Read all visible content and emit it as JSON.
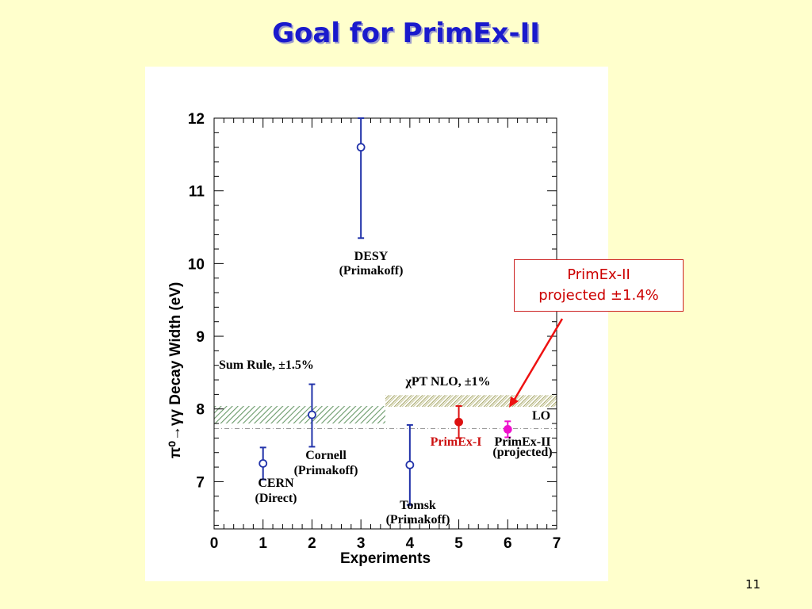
{
  "slide": {
    "title": "Goal for PrimEx-II",
    "page_number": "11"
  },
  "callout": {
    "line1": "PrimEx-II",
    "line2": "projected ±1.4%",
    "color": "#cc0000"
  },
  "chart_data": {
    "type": "scatter",
    "xlabel": "Experiments",
    "ylabel": "π⁰→γγ  Decay Width (eV)",
    "xlim": [
      0,
      7
    ],
    "ylim": [
      6.35,
      12
    ],
    "x_ticks": [
      "0",
      "1",
      "2",
      "3",
      "4",
      "5",
      "6",
      "7"
    ],
    "y_ticks": [
      "7",
      "8",
      "9",
      "10",
      "11",
      "12"
    ],
    "grid": false,
    "points": [
      {
        "x": 1,
        "y": 7.25,
        "err_low": 0.22,
        "err_high": 0.22,
        "marker": "open-circle",
        "color": "#2233aa",
        "label": "CERN",
        "sublabel": "(Direct)"
      },
      {
        "x": 2,
        "y": 7.92,
        "err_low": 0.44,
        "err_high": 0.42,
        "marker": "open-circle",
        "color": "#2233aa",
        "label": "Cornell",
        "sublabel": "(Primakoff)"
      },
      {
        "x": 3,
        "y": 11.6,
        "err_low": 1.25,
        "err_high": 0.4,
        "marker": "open-circle",
        "color": "#2233aa",
        "label": "DESY",
        "sublabel": "(Primakoff)"
      },
      {
        "x": 4,
        "y": 7.23,
        "err_low": 0.55,
        "err_high": 0.55,
        "marker": "open-circle",
        "color": "#2233aa",
        "label": "Tomsk",
        "sublabel": "(Primakoff)"
      },
      {
        "x": 5,
        "y": 7.82,
        "err_low": 0.22,
        "err_high": 0.22,
        "marker": "filled-circle",
        "color": "#dd1111",
        "label": "PrimEx-I",
        "sublabel": ""
      },
      {
        "x": 6,
        "y": 7.72,
        "err_low": 0.11,
        "err_high": 0.11,
        "marker": "filled-circle",
        "color": "#ee11cc",
        "label": "PrimEx-II",
        "sublabel": "(projected)"
      }
    ],
    "bands": [
      {
        "label": "Sum Rule, ±1.5%",
        "x0": 0,
        "x1": 3.5,
        "y0": 7.8,
        "y1": 8.04,
        "color": "#6a9a6a"
      },
      {
        "label": "χPT NLO, ±1%",
        "x0": 3.5,
        "x1": 7,
        "y0": 8.03,
        "y1": 8.19,
        "color": "#a8a86a"
      }
    ],
    "reference_lines": [
      {
        "label": "LO",
        "y": 7.73,
        "style": "dash-dot",
        "color": "#999999"
      }
    ]
  }
}
